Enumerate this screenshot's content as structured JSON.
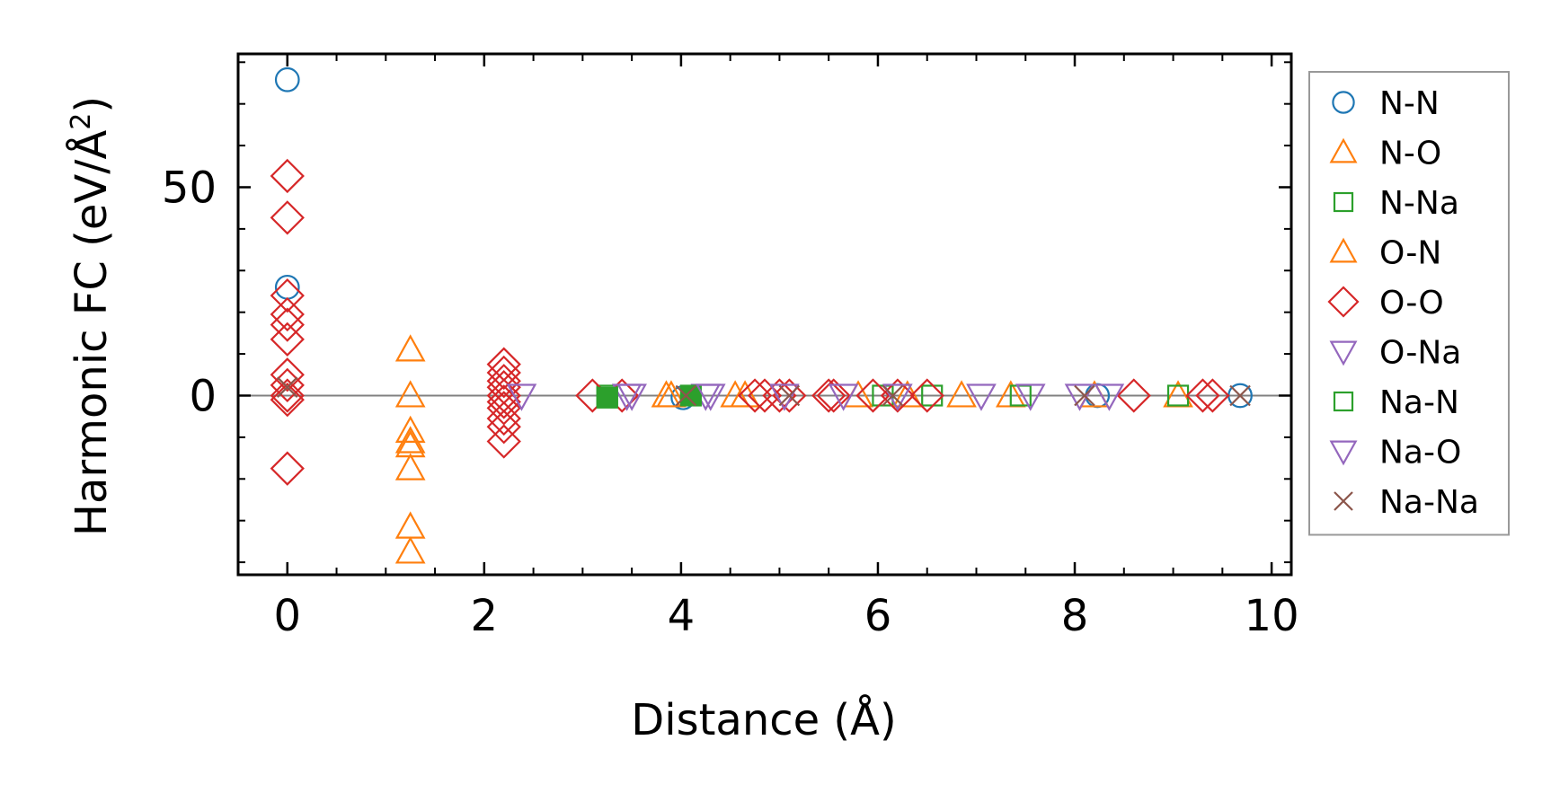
{
  "chart_data": {
    "type": "scatter",
    "title": "",
    "xlabel": "Distance (Å)",
    "ylabel_main": "Harmonic FC (eV/Å",
    "ylabel_sup": "2",
    "ylabel_close": ")",
    "xlim": [
      -0.5,
      10.2
    ],
    "ylim": [
      -43,
      82
    ],
    "xticks": [
      0,
      2,
      4,
      6,
      8,
      10
    ],
    "yticks": [
      0,
      50
    ],
    "xminor_step": 0.5,
    "yminor_step": 10,
    "zero_line": true,
    "legend_position": "outside-right",
    "series": [
      {
        "name": "N-N",
        "marker": "circle",
        "color": "#1f77b4",
        "filled": false,
        "points": [
          [
            0,
            75.8
          ],
          [
            0,
            26
          ],
          [
            4.02,
            -0.5
          ],
          [
            8.23,
            0
          ],
          [
            9.68,
            0
          ]
        ]
      },
      {
        "name": "N-O",
        "marker": "triangle-up",
        "color": "#ff7f0e",
        "filled": false,
        "points": [
          [
            1.25,
            11
          ],
          [
            1.25,
            0
          ],
          [
            1.25,
            -8.5
          ],
          [
            1.25,
            -11
          ],
          [
            1.25,
            -12
          ],
          [
            1.25,
            -17.5
          ],
          [
            1.25,
            -31.5
          ],
          [
            1.25,
            -37.5
          ],
          [
            3.85,
            0
          ],
          [
            4.55,
            0
          ],
          [
            5.8,
            0
          ],
          [
            6.85,
            0
          ],
          [
            7.35,
            0
          ],
          [
            9.05,
            0
          ]
        ]
      },
      {
        "name": "N-Na",
        "marker": "square",
        "color": "#2ca02c",
        "filled": false,
        "points": [
          [
            3.25,
            0
          ],
          [
            6.05,
            0
          ],
          [
            6.55,
            0
          ],
          [
            7.45,
            0
          ],
          [
            9.05,
            0
          ]
        ]
      },
      {
        "name": "O-N",
        "marker": "triangle-up",
        "color": "#ff7f0e",
        "filled": false,
        "points": [
          [
            3.9,
            0
          ],
          [
            4.65,
            0
          ],
          [
            6.3,
            0
          ],
          [
            8.2,
            0
          ]
        ]
      },
      {
        "name": "O-O",
        "marker": "diamond",
        "color": "#d62728",
        "filled": false,
        "points": [
          [
            0,
            52.7
          ],
          [
            0,
            42.7
          ],
          [
            0,
            24
          ],
          [
            0,
            19.5
          ],
          [
            0,
            17
          ],
          [
            0,
            13.5
          ],
          [
            0,
            5
          ],
          [
            0,
            2.5
          ],
          [
            0,
            0
          ],
          [
            0,
            -1
          ],
          [
            0,
            -17.5
          ],
          [
            2.2,
            7.5
          ],
          [
            2.2,
            5.5
          ],
          [
            2.2,
            3.5
          ],
          [
            2.2,
            2
          ],
          [
            2.2,
            0
          ],
          [
            2.2,
            -1.5
          ],
          [
            2.2,
            -3
          ],
          [
            2.2,
            -5.5
          ],
          [
            2.2,
            -7.5
          ],
          [
            2.2,
            -11
          ],
          [
            3.1,
            0
          ],
          [
            3.4,
            0
          ],
          [
            4.75,
            0
          ],
          [
            4.85,
            0
          ],
          [
            5.0,
            0
          ],
          [
            5.1,
            0
          ],
          [
            5.5,
            0
          ],
          [
            5.55,
            0
          ],
          [
            5.95,
            0
          ],
          [
            6.2,
            0
          ],
          [
            6.5,
            0
          ],
          [
            8.6,
            0
          ],
          [
            9.3,
            0
          ],
          [
            9.4,
            0
          ]
        ]
      },
      {
        "name": "O-Na",
        "marker": "triangle-down",
        "color": "#9467bd",
        "filled": false,
        "points": [
          [
            2.38,
            0
          ],
          [
            3.45,
            0
          ],
          [
            4.25,
            0
          ],
          [
            5.65,
            0
          ],
          [
            7.05,
            0
          ],
          [
            7.55,
            0
          ],
          [
            8.35,
            0
          ]
        ]
      },
      {
        "name": "Na-N",
        "marker": "square",
        "color": "#2ca02c",
        "filled": true,
        "points": [
          [
            3.25,
            -0.5
          ],
          [
            4.1,
            0
          ]
        ]
      },
      {
        "name": "Na-O",
        "marker": "triangle-down",
        "color": "#9467bd",
        "filled": false,
        "points": [
          [
            3.5,
            0
          ],
          [
            4.3,
            0
          ],
          [
            5.05,
            0
          ],
          [
            6.2,
            0
          ],
          [
            8.05,
            0
          ]
        ]
      },
      {
        "name": "Na-Na",
        "marker": "x",
        "color": "#8c564b",
        "filled": false,
        "points": [
          [
            0,
            2
          ],
          [
            4.05,
            0
          ],
          [
            5.1,
            0
          ],
          [
            6.15,
            0
          ],
          [
            8.1,
            0
          ],
          [
            9.68,
            0
          ]
        ]
      }
    ]
  }
}
